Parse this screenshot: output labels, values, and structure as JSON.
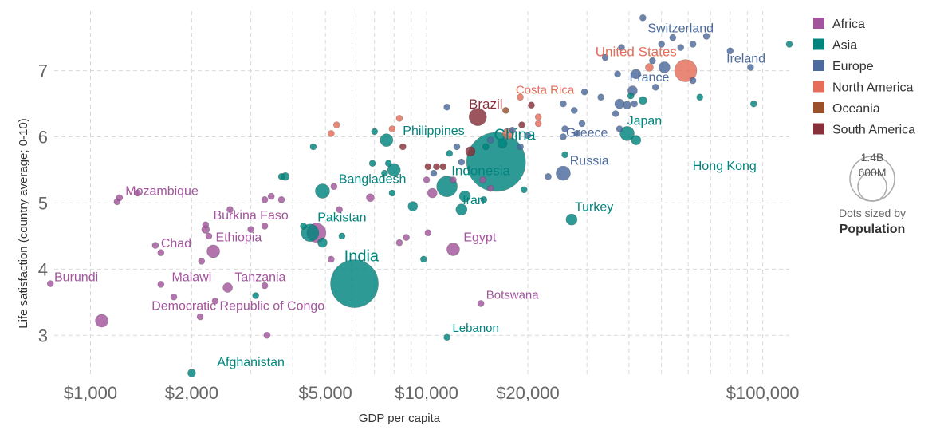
{
  "chart_data": {
    "type": "scatter",
    "xlabel": "GDP per capita",
    "ylabel": "Life satisfaction (country average; 0-10)",
    "x_scale": "log",
    "xlim": [
      780,
      120000
    ],
    "ylim": [
      2.4,
      7.9
    ],
    "x_ticks": [
      {
        "value": 1000,
        "label": "$1,000"
      },
      {
        "value": 2000,
        "label": "$2,000"
      },
      {
        "value": 5000,
        "label": "$5,000"
      },
      {
        "value": 10000,
        "label": "$10,000"
      },
      {
        "value": 20000,
        "label": "$20,000"
      },
      {
        "value": 100000,
        "label": "$100,000"
      }
    ],
    "y_ticks": [
      {
        "value": 3,
        "label": "3"
      },
      {
        "value": 4,
        "label": "4"
      },
      {
        "value": 5,
        "label": "5"
      },
      {
        "value": 6,
        "label": "6"
      },
      {
        "value": 7,
        "label": "7"
      }
    ],
    "legend": [
      {
        "name": "Africa",
        "color": "#a2559c"
      },
      {
        "name": "Asia",
        "color": "#00847e"
      },
      {
        "name": "Europe",
        "color": "#4c6a9c"
      },
      {
        "name": "North America",
        "color": "#e56e5a"
      },
      {
        "name": "Oceania",
        "color": "#9a5129"
      },
      {
        "name": "South America",
        "color": "#883039"
      }
    ],
    "size_legend": {
      "values": [
        "1.4B",
        "600M"
      ],
      "title": "Dots sized by",
      "title_bold": "Population"
    },
    "points": [
      {
        "x": 120000,
        "y": 7.4,
        "r": 4,
        "c": "Asia"
      },
      {
        "x": 94000,
        "y": 6.5,
        "r": 4,
        "c": "Asia"
      },
      {
        "x": 80000,
        "y": 7.3,
        "r": 4,
        "c": "Europe"
      },
      {
        "x": 92000,
        "y": 7.05,
        "r": 4,
        "c": "Europe"
      },
      {
        "x": 62000,
        "y": 6.85,
        "r": 4,
        "c": "Europe"
      },
      {
        "x": 65000,
        "y": 6.6,
        "r": 4,
        "c": "Asia"
      },
      {
        "x": 44000,
        "y": 7.8,
        "r": 4,
        "c": "Europe"
      },
      {
        "x": 54000,
        "y": 7.5,
        "r": 4,
        "c": "Europe"
      },
      {
        "x": 62000,
        "y": 7.4,
        "r": 4,
        "c": "Europe"
      },
      {
        "x": 57000,
        "y": 7.35,
        "r": 4,
        "c": "Europe"
      },
      {
        "x": 50000,
        "y": 7.4,
        "r": 4,
        "c": "Europe"
      },
      {
        "x": 68000,
        "y": 7.52,
        "r": 4,
        "c": "Europe"
      },
      {
        "x": 38000,
        "y": 7.35,
        "r": 4,
        "c": "Europe"
      },
      {
        "x": 34000,
        "y": 7.2,
        "r": 4,
        "c": "Europe"
      },
      {
        "x": 47000,
        "y": 7.15,
        "r": 4,
        "c": "Europe"
      },
      {
        "x": 51000,
        "y": 7.05,
        "r": 7,
        "c": "Europe"
      },
      {
        "x": 46000,
        "y": 7.05,
        "r": 5,
        "c": "North America"
      },
      {
        "x": 59000,
        "y": 7.0,
        "r": 14,
        "c": "North America"
      },
      {
        "x": 42000,
        "y": 6.95,
        "r": 6,
        "c": "Europe"
      },
      {
        "x": 37000,
        "y": 6.95,
        "r": 4,
        "c": "Europe"
      },
      {
        "x": 48000,
        "y": 6.75,
        "r": 4,
        "c": "Europe"
      },
      {
        "x": 41000,
        "y": 6.7,
        "r": 6,
        "c": "Europe"
      },
      {
        "x": 40500,
        "y": 6.62,
        "r": 4,
        "c": "Asia"
      },
      {
        "x": 33000,
        "y": 6.6,
        "r": 4,
        "c": "Europe"
      },
      {
        "x": 29500,
        "y": 6.68,
        "r": 4,
        "c": "Europe"
      },
      {
        "x": 25500,
        "y": 6.5,
        "r": 4,
        "c": "Europe"
      },
      {
        "x": 37500,
        "y": 6.5,
        "r": 6,
        "c": "Europe"
      },
      {
        "x": 39500,
        "y": 6.48,
        "r": 5,
        "c": "Europe"
      },
      {
        "x": 41500,
        "y": 6.5,
        "r": 4,
        "c": "Europe"
      },
      {
        "x": 44000,
        "y": 6.55,
        "r": 5,
        "c": "Asia"
      },
      {
        "x": 27500,
        "y": 6.4,
        "r": 4,
        "c": "Europe"
      },
      {
        "x": 21500,
        "y": 6.3,
        "r": 4,
        "c": "North America"
      },
      {
        "x": 36500,
        "y": 6.35,
        "r": 4,
        "c": "Europe"
      },
      {
        "x": 19000,
        "y": 6.6,
        "r": 4,
        "c": "North America"
      },
      {
        "x": 17200,
        "y": 6.4,
        "r": 4,
        "c": "Oceania"
      },
      {
        "x": 20500,
        "y": 6.48,
        "r": 4,
        "c": "South America"
      },
      {
        "x": 29000,
        "y": 6.2,
        "r": 4,
        "c": "Europe"
      },
      {
        "x": 21500,
        "y": 6.2,
        "r": 4,
        "c": "North America"
      },
      {
        "x": 19200,
        "y": 6.18,
        "r": 4,
        "c": "South America"
      },
      {
        "x": 14200,
        "y": 6.3,
        "r": 11,
        "c": "South America"
      },
      {
        "x": 11500,
        "y": 6.45,
        "r": 4,
        "c": "Europe"
      },
      {
        "x": 25800,
        "y": 6.12,
        "r": 4,
        "c": "Europe"
      },
      {
        "x": 37500,
        "y": 6.12,
        "r": 4,
        "c": "Europe"
      },
      {
        "x": 39500,
        "y": 6.05,
        "r": 9,
        "c": "Asia"
      },
      {
        "x": 42000,
        "y": 5.95,
        "r": 6,
        "c": "Asia"
      },
      {
        "x": 18000,
        "y": 6.1,
        "r": 4,
        "c": "Europe"
      },
      {
        "x": 17500,
        "y": 6.05,
        "r": 7,
        "c": "North America"
      },
      {
        "x": 20000,
        "y": 6.02,
        "r": 4,
        "c": "Europe"
      },
      {
        "x": 25500,
        "y": 6.0,
        "r": 4,
        "c": "Europe"
      },
      {
        "x": 28000,
        "y": 6.05,
        "r": 4,
        "c": "Europe"
      },
      {
        "x": 15500,
        "y": 5.95,
        "r": 4,
        "c": "Europe"
      },
      {
        "x": 16800,
        "y": 5.9,
        "r": 6,
        "c": "Asia"
      },
      {
        "x": 19000,
        "y": 5.85,
        "r": 4,
        "c": "Europe"
      },
      {
        "x": 15000,
        "y": 5.85,
        "r": 4,
        "c": "Asia"
      },
      {
        "x": 13500,
        "y": 5.78,
        "r": 6,
        "c": "South America"
      },
      {
        "x": 12300,
        "y": 5.85,
        "r": 4,
        "c": "Europe"
      },
      {
        "x": 12700,
        "y": 5.62,
        "r": 4,
        "c": "Europe"
      },
      {
        "x": 11700,
        "y": 5.75,
        "r": 4,
        "c": "Asia"
      },
      {
        "x": 16100,
        "y": 5.62,
        "r": 37,
        "c": "Asia"
      },
      {
        "x": 25800,
        "y": 5.73,
        "r": 4,
        "c": "Asia"
      },
      {
        "x": 25500,
        "y": 5.45,
        "r": 9,
        "c": "Europe"
      },
      {
        "x": 23000,
        "y": 5.4,
        "r": 4,
        "c": "Europe"
      },
      {
        "x": 10700,
        "y": 5.55,
        "r": 4,
        "c": "South America"
      },
      {
        "x": 11200,
        "y": 5.55,
        "r": 4,
        "c": "South America"
      },
      {
        "x": 10100,
        "y": 5.55,
        "r": 4,
        "c": "South America"
      },
      {
        "x": 10500,
        "y": 5.45,
        "r": 4,
        "c": "Europe"
      },
      {
        "x": 10000,
        "y": 5.35,
        "r": 4,
        "c": "Africa"
      },
      {
        "x": 12000,
        "y": 5.35,
        "r": 4,
        "c": "Africa"
      },
      {
        "x": 14700,
        "y": 5.35,
        "r": 4,
        "c": "Africa"
      },
      {
        "x": 11500,
        "y": 5.25,
        "r": 13,
        "c": "Asia"
      },
      {
        "x": 10400,
        "y": 5.15,
        "r": 6,
        "c": "Africa"
      },
      {
        "x": 13000,
        "y": 5.1,
        "r": 7,
        "c": "Asia"
      },
      {
        "x": 14800,
        "y": 5.05,
        "r": 4,
        "c": "Asia"
      },
      {
        "x": 15500,
        "y": 5.22,
        "r": 4,
        "c": "Africa"
      },
      {
        "x": 19500,
        "y": 5.2,
        "r": 4,
        "c": "Asia"
      },
      {
        "x": 12700,
        "y": 4.9,
        "r": 7,
        "c": "Asia"
      },
      {
        "x": 8000,
        "y": 5.5,
        "r": 8,
        "c": "Asia"
      },
      {
        "x": 7700,
        "y": 5.6,
        "r": 4,
        "c": "Asia"
      },
      {
        "x": 6900,
        "y": 5.6,
        "r": 4,
        "c": "Asia"
      },
      {
        "x": 7500,
        "y": 5.45,
        "r": 4,
        "c": "Asia"
      },
      {
        "x": 7600,
        "y": 5.95,
        "r": 8,
        "c": "Asia"
      },
      {
        "x": 8500,
        "y": 5.85,
        "r": 4,
        "c": "South America"
      },
      {
        "x": 7000,
        "y": 6.08,
        "r": 4,
        "c": "Asia"
      },
      {
        "x": 7900,
        "y": 6.12,
        "r": 4,
        "c": "North America"
      },
      {
        "x": 8300,
        "y": 6.28,
        "r": 4,
        "c": "North America"
      },
      {
        "x": 5400,
        "y": 6.18,
        "r": 4,
        "c": "North America"
      },
      {
        "x": 5200,
        "y": 6.05,
        "r": 4,
        "c": "North America"
      },
      {
        "x": 4600,
        "y": 5.85,
        "r": 4,
        "c": "Asia"
      },
      {
        "x": 4900,
        "y": 5.18,
        "r": 9,
        "c": "Asia"
      },
      {
        "x": 5300,
        "y": 5.25,
        "r": 4,
        "c": "Africa"
      },
      {
        "x": 3700,
        "y": 5.4,
        "r": 4,
        "c": "Asia"
      },
      {
        "x": 3800,
        "y": 5.4,
        "r": 5,
        "c": "Asia"
      },
      {
        "x": 3300,
        "y": 5.05,
        "r": 4,
        "c": "Africa"
      },
      {
        "x": 3450,
        "y": 5.1,
        "r": 4,
        "c": "Africa"
      },
      {
        "x": 3700,
        "y": 5.05,
        "r": 4,
        "c": "Africa"
      },
      {
        "x": 5500,
        "y": 4.9,
        "r": 4,
        "c": "Africa"
      },
      {
        "x": 6800,
        "y": 5.08,
        "r": 5,
        "c": "Africa"
      },
      {
        "x": 7900,
        "y": 5.15,
        "r": 4,
        "c": "Asia"
      },
      {
        "x": 9100,
        "y": 4.95,
        "r": 6,
        "c": "Asia"
      },
      {
        "x": 4500,
        "y": 4.55,
        "r": 11,
        "c": "Asia"
      },
      {
        "x": 4700,
        "y": 4.55,
        "r": 12,
        "c": "Africa"
      },
      {
        "x": 4900,
        "y": 4.4,
        "r": 6,
        "c": "Asia"
      },
      {
        "x": 4300,
        "y": 4.65,
        "r": 4,
        "c": "Asia"
      },
      {
        "x": 5600,
        "y": 4.5,
        "r": 4,
        "c": "Asia"
      },
      {
        "x": 8300,
        "y": 4.4,
        "r": 4,
        "c": "Africa"
      },
      {
        "x": 8700,
        "y": 4.48,
        "r": 4,
        "c": "Africa"
      },
      {
        "x": 10100,
        "y": 4.55,
        "r": 4,
        "c": "Africa"
      },
      {
        "x": 9800,
        "y": 4.15,
        "r": 4,
        "c": "Asia"
      },
      {
        "x": 5200,
        "y": 4.15,
        "r": 4,
        "c": "Africa"
      },
      {
        "x": 6100,
        "y": 3.78,
        "r": 30,
        "c": "Asia"
      },
      {
        "x": 12000,
        "y": 4.3,
        "r": 8,
        "c": "Africa"
      },
      {
        "x": 27000,
        "y": 4.75,
        "r": 7,
        "c": "Asia"
      },
      {
        "x": 14500,
        "y": 3.48,
        "r": 4,
        "c": "Africa"
      },
      {
        "x": 11500,
        "y": 2.97,
        "r": 4,
        "c": "Asia"
      },
      {
        "x": 2000,
        "y": 2.43,
        "r": 5,
        "c": "Asia"
      },
      {
        "x": 1080,
        "y": 3.22,
        "r": 8,
        "c": "Africa"
      },
      {
        "x": 760,
        "y": 3.78,
        "r": 4,
        "c": "Africa"
      },
      {
        "x": 1620,
        "y": 3.77,
        "r": 4,
        "c": "Africa"
      },
      {
        "x": 1770,
        "y": 3.58,
        "r": 4,
        "c": "Africa"
      },
      {
        "x": 2120,
        "y": 3.28,
        "r": 4,
        "c": "Africa"
      },
      {
        "x": 2560,
        "y": 3.72,
        "r": 6,
        "c": "Africa"
      },
      {
        "x": 3300,
        "y": 3.75,
        "r": 4,
        "c": "Africa"
      },
      {
        "x": 2350,
        "y": 3.52,
        "r": 4,
        "c": "Africa"
      },
      {
        "x": 3100,
        "y": 3.6,
        "r": 4,
        "c": "Asia"
      },
      {
        "x": 3350,
        "y": 3.0,
        "r": 4,
        "c": "Africa"
      },
      {
        "x": 1560,
        "y": 4.36,
        "r": 4,
        "c": "Africa"
      },
      {
        "x": 1620,
        "y": 4.25,
        "r": 4,
        "c": "Africa"
      },
      {
        "x": 2140,
        "y": 4.12,
        "r": 4,
        "c": "Africa"
      },
      {
        "x": 2320,
        "y": 4.27,
        "r": 8,
        "c": "Africa"
      },
      {
        "x": 2200,
        "y": 4.6,
        "r": 5,
        "c": "Africa"
      },
      {
        "x": 2250,
        "y": 4.5,
        "r": 4,
        "c": "Africa"
      },
      {
        "x": 2200,
        "y": 4.67,
        "r": 4,
        "c": "Africa"
      },
      {
        "x": 3000,
        "y": 4.6,
        "r": 4,
        "c": "Africa"
      },
      {
        "x": 3300,
        "y": 4.65,
        "r": 4,
        "c": "Africa"
      },
      {
        "x": 2600,
        "y": 4.9,
        "r": 4,
        "c": "Africa"
      },
      {
        "x": 1200,
        "y": 5.02,
        "r": 4,
        "c": "Africa"
      },
      {
        "x": 1220,
        "y": 5.08,
        "r": 4,
        "c": "Africa"
      },
      {
        "x": 1380,
        "y": 5.15,
        "r": 4,
        "c": "Africa"
      }
    ],
    "labels": [
      {
        "text": "Switzerland",
        "x": 57000,
        "y": 7.58,
        "c": "Europe",
        "size": 16,
        "anchor": "middle"
      },
      {
        "text": "United States",
        "x": 42000,
        "y": 7.22,
        "c": "North America",
        "size": 17,
        "anchor": "middle"
      },
      {
        "text": "Ireland",
        "x": 78000,
        "y": 7.12,
        "c": "Europe",
        "size": 16,
        "anchor": "start"
      },
      {
        "text": "France",
        "x": 46000,
        "y": 6.84,
        "c": "Europe",
        "size": 16,
        "anchor": "middle"
      },
      {
        "text": "Costa Rica",
        "x": 22500,
        "y": 6.65,
        "c": "North America",
        "size": 15,
        "anchor": "middle"
      },
      {
        "text": "Brazil",
        "x": 15000,
        "y": 6.43,
        "c": "South America",
        "size": 17,
        "anchor": "middle"
      },
      {
        "text": "Japan",
        "x": 44500,
        "y": 6.18,
        "c": "Asia",
        "size": 16,
        "anchor": "middle"
      },
      {
        "text": "China",
        "x": 18300,
        "y": 5.95,
        "c": "Asia",
        "size": 20,
        "anchor": "middle"
      },
      {
        "text": "Philippines",
        "x": 10500,
        "y": 6.03,
        "c": "Asia",
        "size": 16,
        "anchor": "middle"
      },
      {
        "text": "Greece",
        "x": 30000,
        "y": 6.0,
        "c": "Europe",
        "size": 16,
        "anchor": "middle"
      },
      {
        "text": "Russia",
        "x": 30500,
        "y": 5.58,
        "c": "Europe",
        "size": 16,
        "anchor": "middle"
      },
      {
        "text": "Hong Kong",
        "x": 77000,
        "y": 5.5,
        "c": "Asia",
        "size": 16,
        "anchor": "middle"
      },
      {
        "text": "Indonesia",
        "x": 14500,
        "y": 5.42,
        "c": "Asia",
        "size": 17,
        "anchor": "middle"
      },
      {
        "text": "Bangladesh",
        "x": 6900,
        "y": 5.3,
        "c": "Asia",
        "size": 16,
        "anchor": "middle"
      },
      {
        "text": "Mozambique",
        "x": 1270,
        "y": 5.12,
        "c": "Africa",
        "size": 16,
        "anchor": "start"
      },
      {
        "text": "Iran",
        "x": 13800,
        "y": 4.98,
        "c": "Asia",
        "size": 16,
        "anchor": "middle"
      },
      {
        "text": "Burkina Faso",
        "x": 3000,
        "y": 4.75,
        "c": "Africa",
        "size": 16,
        "anchor": "middle"
      },
      {
        "text": "Turkey",
        "x": 31500,
        "y": 4.88,
        "c": "Asia",
        "size": 16,
        "anchor": "middle"
      },
      {
        "text": "Pakistan",
        "x": 5600,
        "y": 4.72,
        "c": "Asia",
        "size": 16,
        "anchor": "middle"
      },
      {
        "text": "Ethiopia",
        "x": 2760,
        "y": 4.42,
        "c": "Africa",
        "size": 16,
        "anchor": "middle"
      },
      {
        "text": "Chad",
        "x": 1620,
        "y": 4.33,
        "c": "Africa",
        "size": 16,
        "anchor": "start"
      },
      {
        "text": "Egypt",
        "x": 14400,
        "y": 4.42,
        "c": "Africa",
        "size": 16,
        "anchor": "middle"
      },
      {
        "text": "India",
        "x": 6400,
        "y": 4.12,
        "c": "Asia",
        "size": 20,
        "anchor": "middle"
      },
      {
        "text": "Burundi",
        "x": 780,
        "y": 3.82,
        "c": "Africa",
        "size": 16,
        "anchor": "start"
      },
      {
        "text": "Malawi",
        "x": 2000,
        "y": 3.82,
        "c": "Africa",
        "size": 16,
        "anchor": "middle"
      },
      {
        "text": "Tanzania",
        "x": 3200,
        "y": 3.82,
        "c": "Africa",
        "size": 16,
        "anchor": "middle"
      },
      {
        "text": "Democratic Republic of Congo",
        "x": 2750,
        "y": 3.38,
        "c": "Africa",
        "size": 16,
        "anchor": "middle"
      },
      {
        "text": "Botswana",
        "x": 18000,
        "y": 3.55,
        "c": "Africa",
        "size": 15,
        "anchor": "middle"
      },
      {
        "text": "Lebanon",
        "x": 14000,
        "y": 3.05,
        "c": "Asia",
        "size": 15,
        "anchor": "middle"
      },
      {
        "text": "Afghanistan",
        "x": 3000,
        "y": 2.53,
        "c": "Asia",
        "size": 16,
        "anchor": "middle"
      }
    ]
  }
}
